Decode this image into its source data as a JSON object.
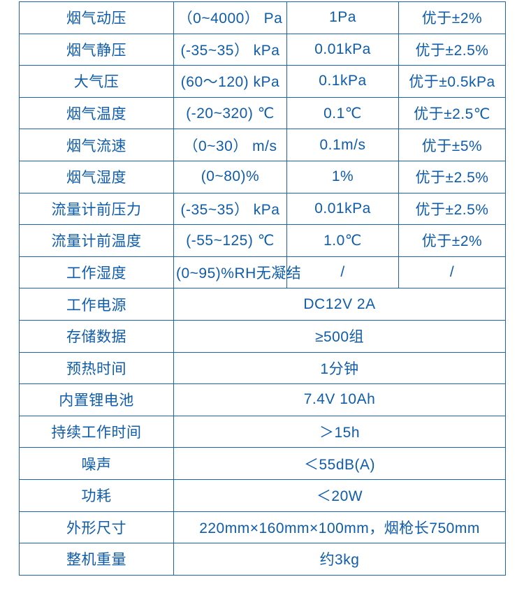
{
  "table": {
    "text_color": "#0f5cab",
    "border_color": "#1d64ae",
    "spec_rows": [
      {
        "label": "烟气动压",
        "range": "（0~4000） Pa",
        "resolution": "1Pa",
        "accuracy": "优于±2%"
      },
      {
        "label": "烟气静压",
        "range": "(-35~35） kPa",
        "resolution": "0.01kPa",
        "accuracy": "优于±2.5%"
      },
      {
        "label": "大气压",
        "range": "(60～120) kPa",
        "resolution": "0.1kPa",
        "accuracy": "优于±0.5kPa"
      },
      {
        "label": "烟气温度",
        "range": "(-20~320) ℃",
        "resolution": "0.1℃",
        "accuracy": "优于±2.5℃"
      },
      {
        "label": "烟气流速",
        "range": "（0~30） m/s",
        "resolution": "0.1m/s",
        "accuracy": "优于±5%"
      },
      {
        "label": "烟气湿度",
        "range": "(0~80)%",
        "resolution": "1%",
        "accuracy": "优于±2.5%"
      },
      {
        "label": "流量计前压力",
        "range": "(-35~35） kPa",
        "resolution": "0.01kPa",
        "accuracy": "优于±2.5%"
      },
      {
        "label": "流量计前温度",
        "range": "(-55~125) ℃",
        "resolution": "1.0℃",
        "accuracy": "优于±2%"
      },
      {
        "label": "工作湿度",
        "range": "(0~95)%RH无凝结",
        "resolution": "/",
        "accuracy": "/"
      }
    ],
    "info_rows": [
      {
        "label": "工作电源",
        "value": "DC12V 2A"
      },
      {
        "label": "存储数据",
        "value": "≥500组"
      },
      {
        "label": "预热时间",
        "value": "1分钟"
      },
      {
        "label": "内置锂电池",
        "value": "7.4V 10Ah"
      },
      {
        "label": "持续工作时间",
        "value": "＞15h"
      },
      {
        "label": "噪声",
        "value": "＜55dB(A)"
      },
      {
        "label": "功耗",
        "value": "＜20W"
      },
      {
        "label": "外形尺寸",
        "value": "220mm×160mm×100mm，烟枪长750mm"
      },
      {
        "label": "整机重量",
        "value": "约3kg"
      }
    ]
  }
}
